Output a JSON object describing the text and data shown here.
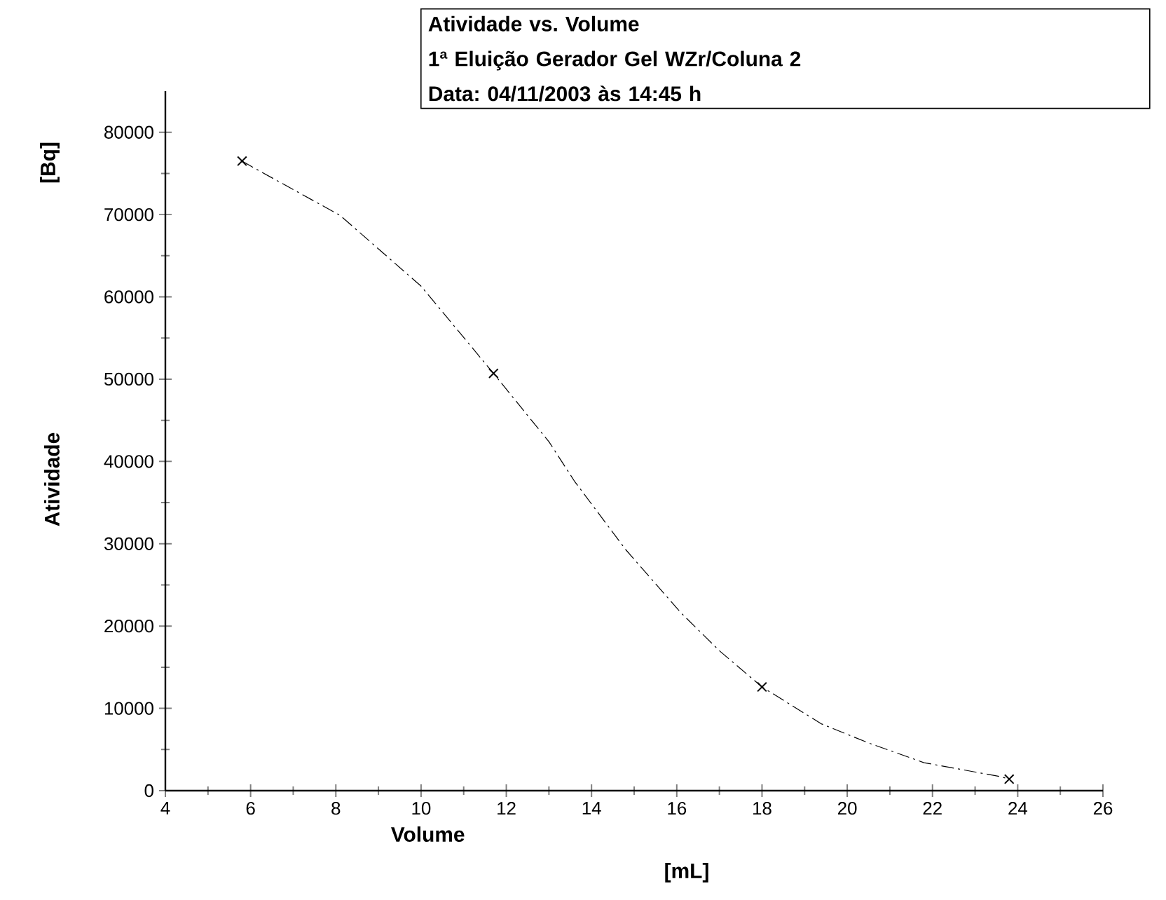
{
  "chart_data": {
    "type": "scatter",
    "title": "Atividade vs. Volume",
    "subtitle": "1ª Eluição Gerador Gel WZr/Coluna 2",
    "annotations": [
      "Data: 04/11/2003 às 14:45 h",
      "[mL]",
      "[Bq]"
    ],
    "xlabel": "Volume",
    "ylabel": "Atividade",
    "series": [
      {
        "color": "#000000",
        "marker": "cross",
        "x": [
          5.8,
          11.7,
          18.0,
          23.8
        ],
        "values": [
          76500,
          50700,
          12600,
          1400
        ]
      },
      {
        "type": "line",
        "color": "#000000",
        "marker": "none",
        "line_style": "dashed",
        "x": [
          5.8,
          6.0,
          8.1,
          10.0,
          11.7,
          13.0,
          13.6,
          14.8,
          16.1,
          17.0,
          18.0,
          19.4,
          20.5,
          21.8,
          23.6,
          23.8
        ],
        "values": [
          76500,
          75900,
          69900,
          61300,
          50700,
          42400,
          37600,
          29300,
          21600,
          17000,
          12600,
          8100,
          5800,
          3400,
          1700,
          1400
        ]
      }
    ],
    "xlim": [
      4,
      26
    ],
    "xticks": [
      4,
      6,
      8,
      10,
      12,
      14,
      16,
      18,
      20,
      22,
      24,
      26
    ],
    "ylim": [
      0,
      85000
    ],
    "yticks": [
      0,
      10000,
      20000,
      30000,
      40000,
      50000,
      60000,
      70000,
      80000
    ],
    "grid": false
  }
}
